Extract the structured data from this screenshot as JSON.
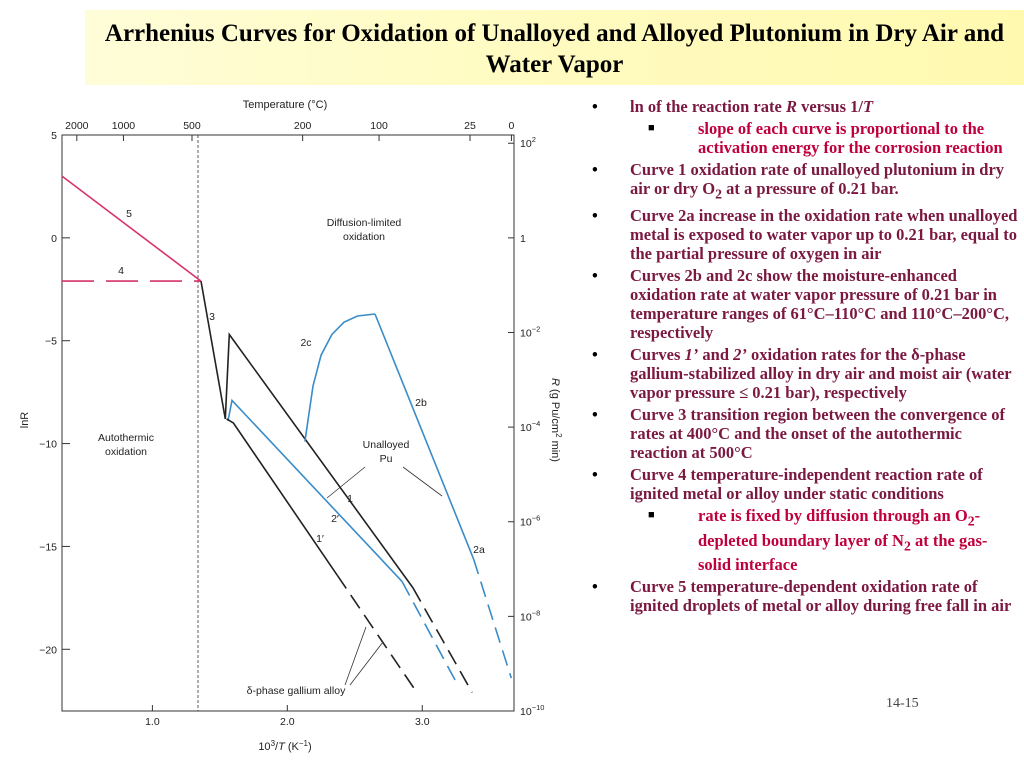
{
  "slide": {
    "title": "Arrhenius Curves for Oxidation of Unalloyed and Alloyed Plutonium in Dry Air and Water Vapor",
    "page_number": "14-15"
  },
  "bullets": {
    "b1": {
      "pre": "ln of the reaction rate ",
      "r": "R",
      "mid": " versus 1/",
      "t": "T"
    },
    "b1_sub": "slope of each curve is proportional to the activation energy for the corrosion reaction",
    "b2": {
      "pre": "Curve 1 oxidation rate of unalloyed plutonium in dry air or dry O",
      "sub": "2",
      "post": " at a pressure of 0.21 bar."
    },
    "b3": "Curve 2a increase in the oxidation rate when unalloyed metal is exposed to water vapor up to 0.21 bar, equal to the partial pressure of oxygen in air",
    "b4": "Curves 2b and 2c show the moisture-enhanced oxidation rate at water vapor pressure of 0.21 bar in temperature ranges of 61°C–110°C and 110°C–200°C, respectively",
    "b5": {
      "pre": "Curves ",
      "c1": "1’",
      "and": " and ",
      "c2": "2’",
      "post": " oxidation rates for the δ-phase gallium-stabilized alloy in dry air and moist air (water vapor pressure ≤ 0.21 bar), respectively"
    },
    "b6": "Curve 3 transition region between the convergence of rates at 400°C and the onset of the autothermic reaction at 500°C",
    "b7": "Curve 4 temperature-independent reaction rate of ignited metal or alloy under static conditions",
    "b7_sub": {
      "pre": "rate is fixed by diffusion through an O",
      "sub1": "2",
      "mid": "-depleted boundary layer of N",
      "sub2": "2",
      "post": " at the gas-solid interface"
    },
    "b8": "Curve 5 temperature-dependent oxidation rate of ignited droplets of metal or alloy during free fall in air"
  },
  "chart_data": {
    "type": "line",
    "title": "",
    "xlabel": "10³/T (K⁻¹)",
    "ylabel": "lnR",
    "top_xlabel": "Temperature (°C)",
    "right_ylabel": "R (g Pu/cm² min)",
    "xlim": [
      0.33,
      3.68
    ],
    "ylim": [
      -23,
      5
    ],
    "x_ticks": [
      1.0,
      2.0,
      3.0
    ],
    "x_tick_labels": [
      "1.0",
      "2.0",
      "3.0"
    ],
    "y_ticks": [
      5,
      0,
      -5,
      -10,
      -15,
      -20
    ],
    "y_tick_labels": [
      "5",
      "0",
      "−5",
      "−10",
      "−15",
      "−20"
    ],
    "top_ticks_celsius": [
      2000,
      1000,
      500,
      200,
      100,
      25,
      0
    ],
    "right_ticks": [
      {
        "label": "10",
        "exp": "2",
        "lnR": 4.6
      },
      {
        "label": "1",
        "exp": "",
        "lnR": 0
      },
      {
        "label": "10",
        "exp": "−2",
        "lnR": -4.6
      },
      {
        "label": "10",
        "exp": "−4",
        "lnR": -9.2
      },
      {
        "label": "10",
        "exp": "−6",
        "lnR": -13.8
      },
      {
        "label": "10",
        "exp": "−8",
        "lnR": -18.4
      },
      {
        "label": "10",
        "exp": "−10",
        "lnR": -23.0
      }
    ],
    "colors": {
      "curve5": "#d6336c",
      "curve4": "#d6336c",
      "unalloyed": "#222222",
      "alloy": "#3a8cc8"
    },
    "series": [
      {
        "name": "5",
        "x": [
          0.33,
          1.36
        ],
        "y": [
          3.0,
          -2.1
        ]
      },
      {
        "name": "4",
        "x": [
          0.33,
          1.36
        ],
        "y": [
          -2.1,
          -2.1
        ]
      },
      {
        "name": "3",
        "x": [
          1.36,
          1.54
        ],
        "y": [
          -2.1,
          -8.8
        ]
      },
      {
        "name": "1",
        "x": [
          1.54,
          1.57,
          2.93
        ],
        "y": [
          -8.8,
          -4.7,
          -17.0
        ]
      },
      {
        "name": "2′",
        "x": [
          1.56,
          1.59,
          2.85
        ],
        "y": [
          -8.9,
          -7.9,
          -16.7
        ]
      },
      {
        "name": "1′",
        "x": [
          1.55,
          1.6,
          2.37
        ],
        "y": [
          -8.8,
          -9.0,
          -16.4
        ]
      },
      {
        "name": "2c",
        "x": [
          2.13,
          2.19,
          2.25,
          2.33,
          2.42,
          2.52,
          2.65
        ],
        "y": [
          -9.9,
          -7.2,
          -5.7,
          -4.7,
          -4.1,
          -3.8,
          -3.7
        ]
      },
      {
        "name": "2b",
        "x": [
          2.65,
          3.38
        ],
        "y": [
          -3.7,
          -15.6
        ]
      },
      {
        "name": "2a",
        "x": [
          3.38,
          3.66
        ],
        "y": [
          -15.6,
          -21.4
        ]
      }
    ],
    "annotations": [
      "Diffusion-limited oxidation",
      "Autothermic oxidation",
      "Unalloyed Pu",
      "δ-phase gallium alloy"
    ]
  }
}
